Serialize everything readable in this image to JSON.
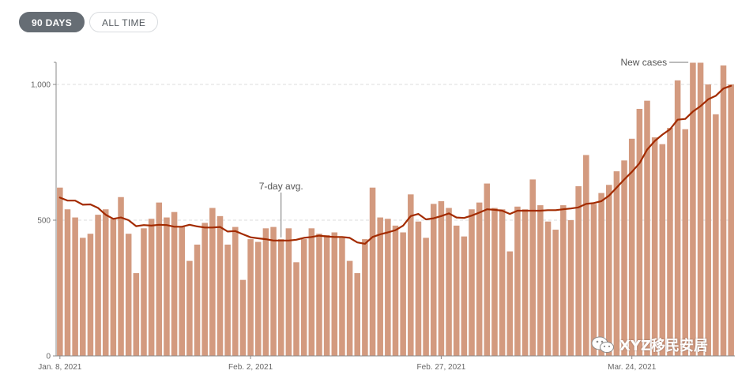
{
  "toggle": {
    "options": [
      "90 DAYS",
      "ALL TIME"
    ],
    "selected": "90 DAYS"
  },
  "watermark_text": "XYZ移民安居",
  "chart_data": {
    "type": "bar",
    "bar_series_name": "New cases",
    "line_series_name": "7-day avg.",
    "bar_color": "#d39a7f",
    "line_color": "#a32b00",
    "y_ticks": [
      {
        "value": 0,
        "label": "0"
      },
      {
        "value": 500,
        "label": "500"
      },
      {
        "value": 1000,
        "label": "1,000"
      }
    ],
    "ylim": [
      0,
      1080
    ],
    "gridlines": true,
    "x_ticks": [
      {
        "index": 0,
        "label": "Jan. 8, 2021"
      },
      {
        "index": 25,
        "label": "Feb. 2, 2021"
      },
      {
        "index": 50,
        "label": "Feb. 27, 2021"
      },
      {
        "index": 75,
        "label": "Mar. 24, 2021"
      }
    ],
    "values": [
      620,
      540,
      510,
      435,
      450,
      520,
      540,
      505,
      585,
      450,
      305,
      470,
      505,
      565,
      510,
      530,
      475,
      350,
      410,
      490,
      545,
      515,
      410,
      475,
      280,
      430,
      420,
      470,
      475,
      430,
      470,
      345,
      430,
      470,
      450,
      445,
      455,
      435,
      350,
      305,
      430,
      620,
      510,
      505,
      480,
      455,
      595,
      495,
      435,
      560,
      570,
      545,
      480,
      440,
      540,
      565,
      635,
      545,
      540,
      385,
      550,
      540,
      650,
      555,
      495,
      465,
      555,
      500,
      625,
      740,
      560,
      600,
      630,
      680,
      720,
      800,
      910,
      940,
      805,
      780,
      840,
      1015,
      835,
      1080,
      1080,
      1000,
      890,
      1070,
      1000
    ],
    "avg": [
      583,
      572,
      572,
      557,
      558,
      545,
      520,
      505,
      510,
      500,
      478,
      482,
      480,
      483,
      482,
      476,
      476,
      483,
      477,
      473,
      473,
      475,
      458,
      460,
      448,
      437,
      433,
      430,
      425,
      425,
      425,
      428,
      435,
      438,
      443,
      440,
      438,
      438,
      435,
      418,
      413,
      438,
      448,
      455,
      463,
      480,
      515,
      523,
      503,
      507,
      515,
      525,
      510,
      508,
      517,
      528,
      540,
      538,
      535,
      523,
      535,
      535,
      535,
      535,
      537,
      537,
      540,
      543,
      547,
      560,
      563,
      570,
      590,
      620,
      650,
      678,
      710,
      760,
      792,
      815,
      835,
      870,
      873,
      900,
      920,
      945,
      958,
      985,
      995
    ]
  }
}
